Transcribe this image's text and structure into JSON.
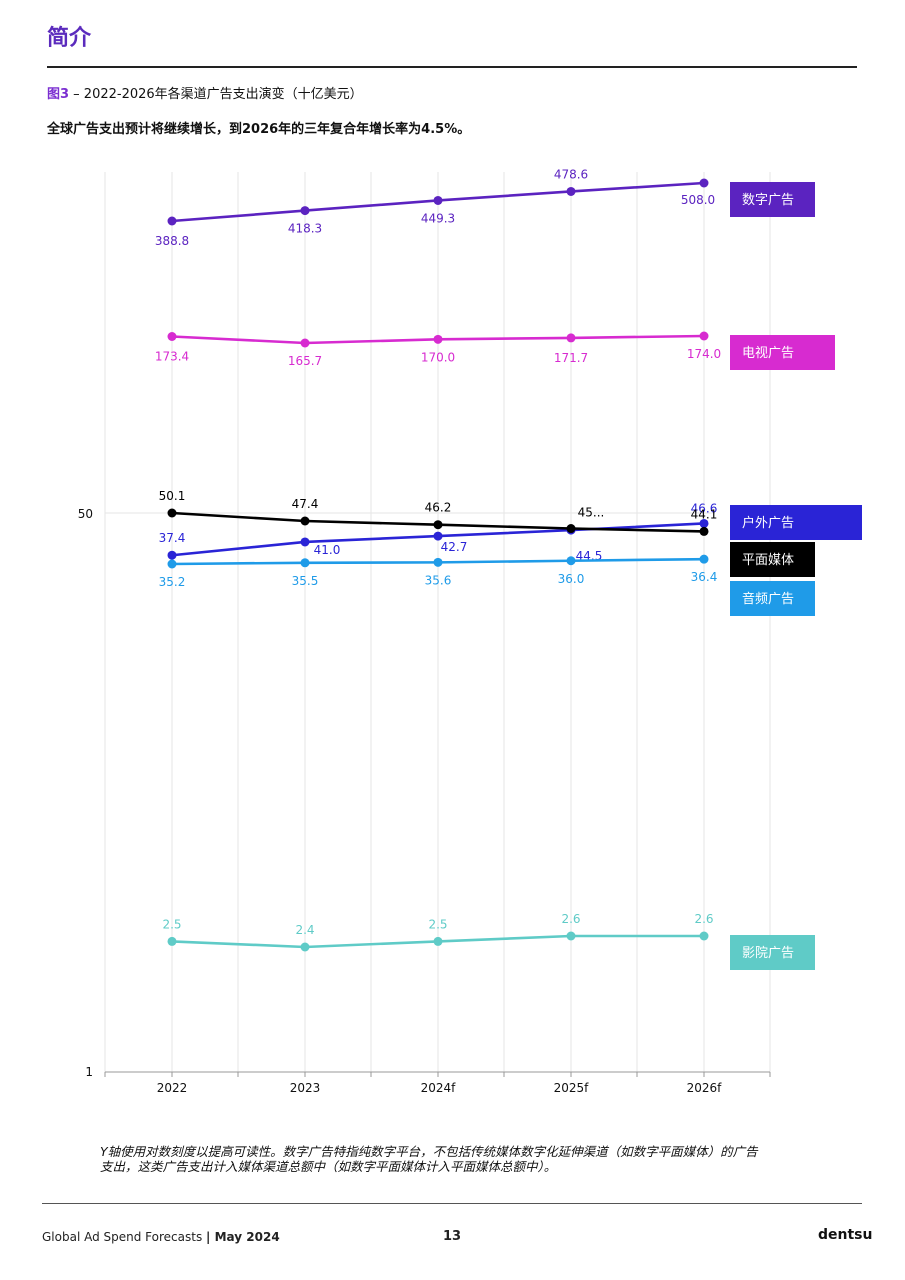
{
  "header": {
    "title": "简介",
    "figure_label": "图3",
    "figure_caption": " – 2022-2026年各渠道广告支出演变（十亿美元）",
    "subtitle": "全球广告支出预计将继续增长，到2026年的三年复合年增长率为4.5%。"
  },
  "chart_data": {
    "type": "line",
    "title": "",
    "xlabel": "",
    "ylabel": "",
    "y_scale": "log",
    "categories": [
      "2022",
      "2023",
      "2024f",
      "2025f",
      "2026f"
    ],
    "y_ticks": [
      "1",
      "50"
    ],
    "grid": "vertical",
    "legend": "right, labels at line ends",
    "series": [
      {
        "name": "数字广告",
        "color": "#5b23c0",
        "values": [
          388.8,
          418.3,
          449.3,
          478.6,
          508.0
        ],
        "labels": [
          "388.8",
          "418.3",
          "449.3",
          "478.6",
          "508.0"
        ]
      },
      {
        "name": "电视广告",
        "color": "#d72bd0",
        "values": [
          173.4,
          165.7,
          170.0,
          171.7,
          174.0
        ],
        "labels": [
          "173.4",
          "165.7",
          "170.0",
          "171.7",
          "174.0"
        ]
      },
      {
        "name": "户外广告",
        "color": "#2a24d6",
        "values": [
          37.4,
          41.0,
          42.7,
          44.5,
          46.6
        ],
        "labels": [
          "37.4",
          "41.0",
          "42.7",
          "44.5",
          "46.6"
        ]
      },
      {
        "name": "平面媒体",
        "color": "#000000",
        "values": [
          50.1,
          47.4,
          46.2,
          45.0,
          44.1
        ],
        "labels": [
          "50.1",
          "47.4",
          "46.2",
          "45...",
          "44.1"
        ]
      },
      {
        "name": "音频广告",
        "color": "#1f9be8",
        "values": [
          35.2,
          35.5,
          35.6,
          36.0,
          36.4
        ],
        "labels": [
          "35.2",
          "35.5",
          "35.6",
          "36.0",
          "36.4"
        ]
      },
      {
        "name": "影院广告",
        "color": "#5fcbc7",
        "values": [
          2.5,
          2.4,
          2.5,
          2.6,
          2.6
        ],
        "labels": [
          "2.5",
          "2.4",
          "2.5",
          "2.6",
          "2.6"
        ]
      }
    ]
  },
  "footnote": "Y轴使用对数刻度以提高可读性。数字广告特指纯数字平台，不包括传统媒体数字化延伸渠道（如数字平面媒体）的广告支出，这类广告支出计入媒体渠道总额中（如数字平面媒体计入平面媒体总额中）。",
  "footer": {
    "source": "Global Ad Spend Forecasts",
    "separator": "|",
    "date": " May 2024",
    "page_number": "13",
    "brand": "dentsu"
  }
}
